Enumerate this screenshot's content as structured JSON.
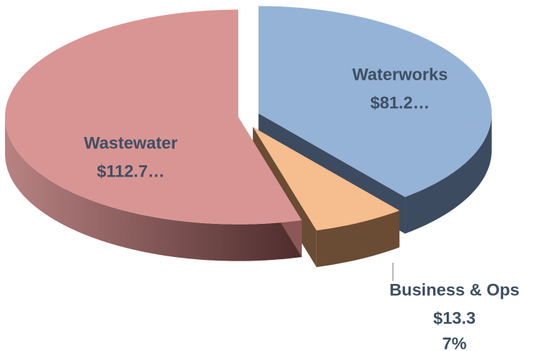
{
  "chart_data": {
    "type": "pie3d",
    "categories": [
      "Waterworks",
      "Business & Ops",
      "Wastewater"
    ],
    "values": [
      81.2,
      13.3,
      112.7
    ],
    "value_labels": [
      "$81.2…",
      "$13.3",
      "$112.7…"
    ],
    "percent_labels": [
      null,
      "7%",
      null
    ],
    "colors": [
      "#95b3d7",
      "#f6bd8e",
      "#d99594"
    ],
    "side_colors": [
      "#3c4b60",
      "#6a4b34",
      "#8c5757"
    ]
  }
}
